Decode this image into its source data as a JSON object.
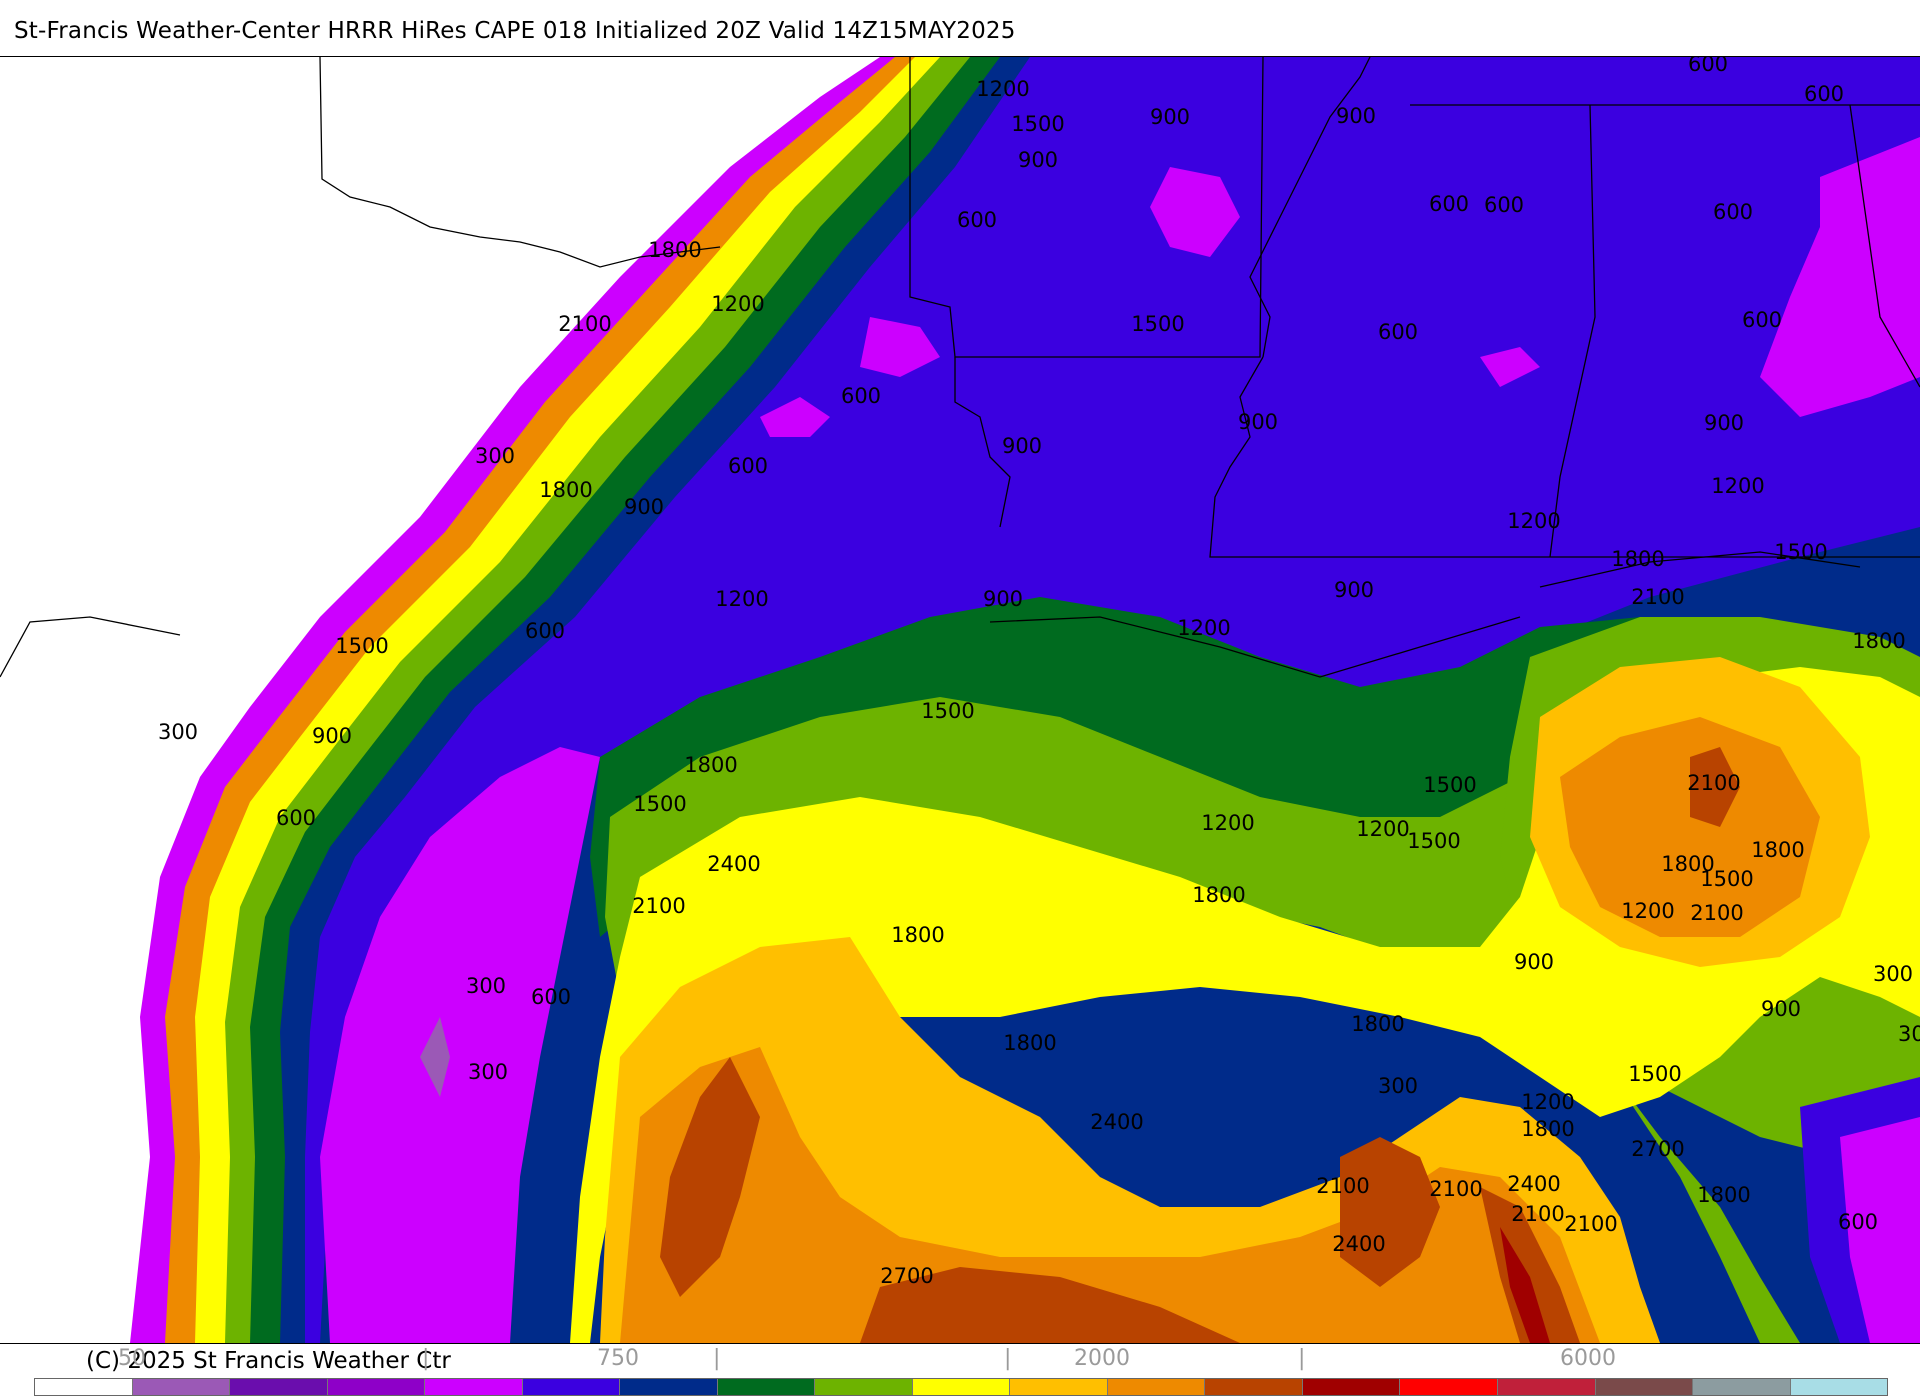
{
  "title": "St-Francis Weather-Center HRRR HiRes CAPE  018 Initialized  20Z Valid 14Z15MAY2025",
  "copyright": "(C) 2025 St Francis Weather Ctr",
  "scale_labels": [
    "50",
    "|",
    "750",
    "|",
    "|",
    "2000",
    "|",
    "6000"
  ],
  "colorbar_colors": [
    "#ffffff",
    "#9b59b6",
    "#6a0dad",
    "#8e00c8",
    "#cc00ff",
    "#3b00e0",
    "#002b8a",
    "#006b1f",
    "#6db300",
    "#ffff00",
    "#ffbf00",
    "#ee8a00",
    "#b84300",
    "#a00000",
    "#ff0000",
    "#c0203a",
    "#7a4a4a",
    "#8c9ca0",
    "#a8dde6"
  ],
  "contour_labels": [
    "1200",
    "1500",
    "900",
    "600",
    "600",
    "900",
    "1800",
    "600",
    "1200",
    "600",
    "900",
    "1500",
    "2100",
    "600",
    "600",
    "600",
    "300",
    "600",
    "1800",
    "900",
    "600",
    "900",
    "600",
    "900",
    "900",
    "1200",
    "900",
    "1200",
    "1200",
    "900",
    "600",
    "1800",
    "1200",
    "2100",
    "1500",
    "1800",
    "1500",
    "1500",
    "300",
    "900",
    "1800",
    "1500",
    "1500",
    "600",
    "2400",
    "2100",
    "1800",
    "1800",
    "2100",
    "1800",
    "1800",
    "1200",
    "2100",
    "1200",
    "1500",
    "1500",
    "900",
    "300",
    "300",
    "600",
    "900",
    "300",
    "300",
    "1800",
    "2400",
    "2100",
    "1800",
    "2400",
    "2400",
    "2100",
    "2700",
    "2100",
    "2100",
    "1800",
    "600",
    "1200",
    "2700",
    "1200",
    "1500",
    "1800",
    "300"
  ]
}
